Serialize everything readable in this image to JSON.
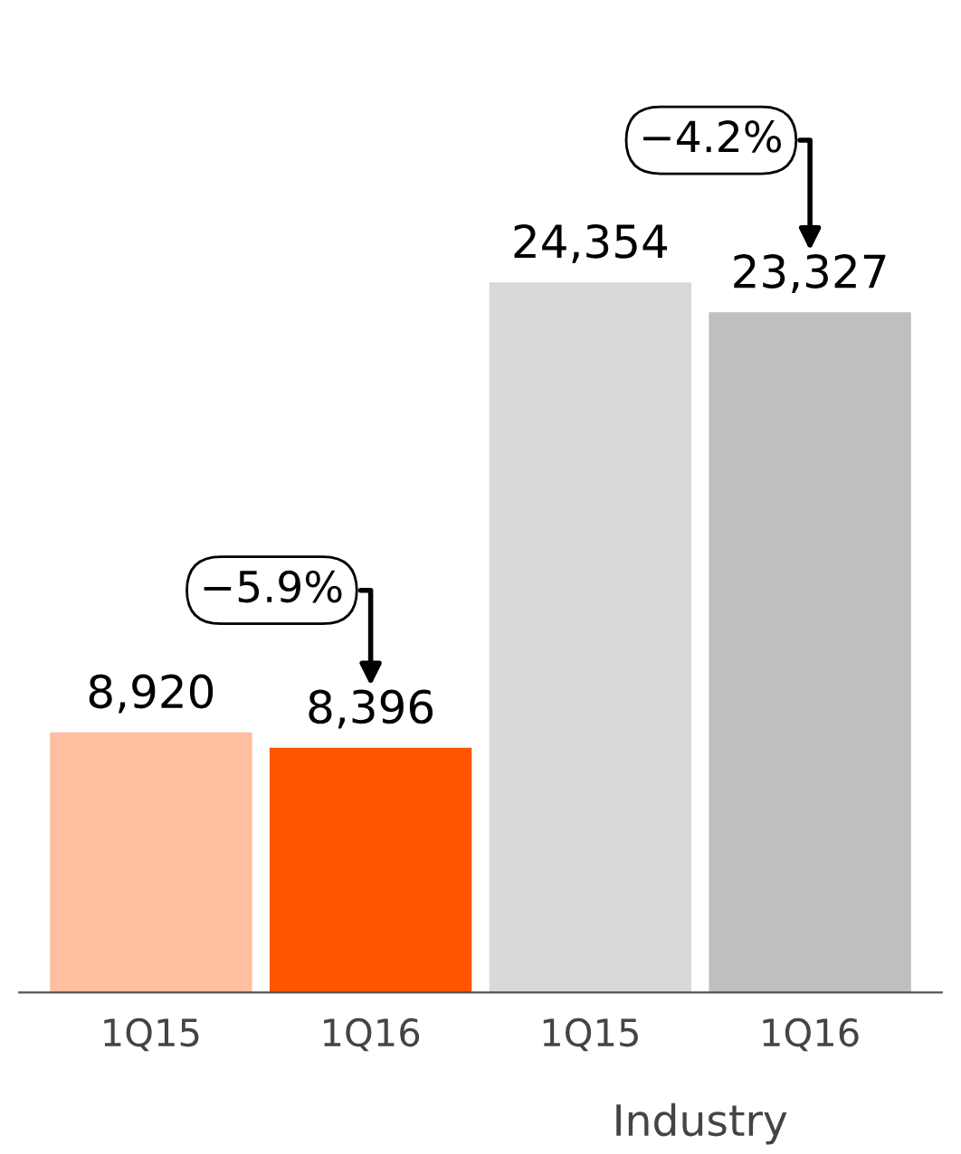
{
  "chart_data": {
    "type": "bar",
    "categories": [
      "1Q15",
      "1Q16",
      "1Q15",
      "1Q16"
    ],
    "values": [
      8920,
      8396,
      24354,
      23327
    ],
    "value_labels": [
      "8,920",
      "8,396",
      "24,354",
      "23,327"
    ],
    "colors": [
      "#fdbf9f",
      "#ff5500",
      "#d9d9d9",
      "#bfbfbf"
    ],
    "annotations": [
      "−5.9%",
      "−4.2%",
      "Industry"
    ]
  }
}
